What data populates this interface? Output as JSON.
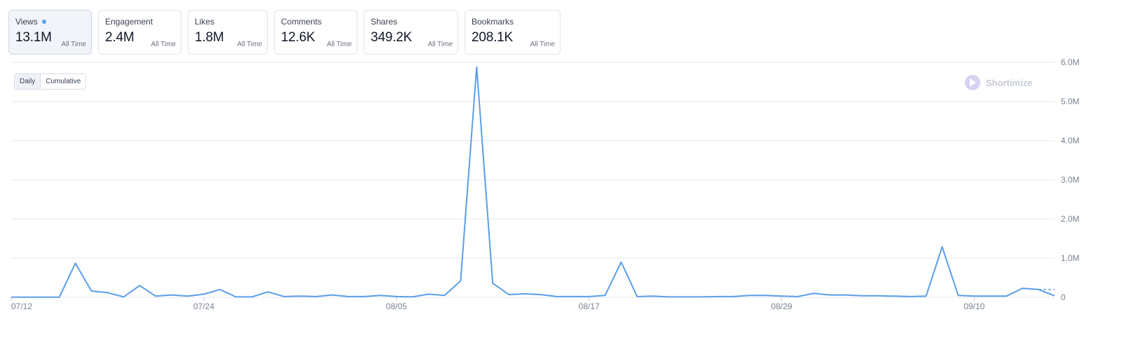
{
  "stats": [
    {
      "label": "Views",
      "value": "13.1M",
      "sub": "All Time",
      "active": true
    },
    {
      "label": "Engagement",
      "value": "2.4M",
      "sub": "All Time",
      "active": false
    },
    {
      "label": "Likes",
      "value": "1.8M",
      "sub": "All Time",
      "active": false
    },
    {
      "label": "Comments",
      "value": "12.6K",
      "sub": "All Time",
      "active": false
    },
    {
      "label": "Shares",
      "value": "349.2K",
      "sub": "All Time",
      "active": false
    },
    {
      "label": "Bookmarks",
      "value": "208.1K",
      "sub": "All Time",
      "active": false
    }
  ],
  "toggle": {
    "daily": "Daily",
    "cumulative": "Cumulative",
    "selected": "daily"
  },
  "watermark": {
    "text": "Shortimize"
  },
  "colors": {
    "line": "#5b9ee9",
    "grid": "#e3e7f0",
    "active_dot": "#5b9ee9"
  },
  "chart_data": {
    "type": "line",
    "y_ticks": [
      {
        "value": 0,
        "label": "0"
      },
      {
        "value": 1000000,
        "label": "1.0M"
      },
      {
        "value": 2000000,
        "label": "2.0M"
      },
      {
        "value": 3000000,
        "label": "3.0M"
      },
      {
        "value": 4000000,
        "label": "4.0M"
      },
      {
        "value": 5000000,
        "label": "5.0M"
      },
      {
        "value": 6000000,
        "label": "6.0M"
      }
    ],
    "ylim": [
      0,
      6000000
    ],
    "x_ticks": [
      "07/12",
      "07/24",
      "08/05",
      "08/17",
      "08/29",
      "09/10"
    ],
    "x": [
      "07/12",
      "07/13",
      "07/14",
      "07/15",
      "07/16",
      "07/17",
      "07/18",
      "07/19",
      "07/20",
      "07/21",
      "07/22",
      "07/23",
      "07/24",
      "07/25",
      "07/26",
      "07/27",
      "07/28",
      "07/29",
      "07/30",
      "07/31",
      "08/01",
      "08/02",
      "08/03",
      "08/04",
      "08/05",
      "08/06",
      "08/07",
      "08/08",
      "08/09",
      "08/10",
      "08/11",
      "08/12",
      "08/13",
      "08/14",
      "08/15",
      "08/16",
      "08/17",
      "08/18",
      "08/19",
      "08/20",
      "08/21",
      "08/22",
      "08/23",
      "08/24",
      "08/25",
      "08/26",
      "08/27",
      "08/28",
      "08/29",
      "08/30",
      "08/31",
      "09/01",
      "09/02",
      "09/03",
      "09/04",
      "09/05",
      "09/06",
      "09/07",
      "09/08",
      "09/09",
      "09/10",
      "09/11",
      "09/12",
      "09/13",
      "09/14",
      "09/15"
    ],
    "series": [
      {
        "values": [
          5000,
          5000,
          5000,
          5000,
          870000,
          160000,
          120000,
          10000,
          300000,
          30000,
          60000,
          30000,
          80000,
          200000,
          10000,
          10000,
          140000,
          20000,
          30000,
          20000,
          60000,
          20000,
          20000,
          50000,
          20000,
          10000,
          80000,
          50000,
          420000,
          5880000,
          360000,
          70000,
          90000,
          70000,
          20000,
          20000,
          20000,
          50000,
          900000,
          20000,
          30000,
          10000,
          10000,
          10000,
          20000,
          20000,
          50000,
          50000,
          30000,
          20000,
          100000,
          60000,
          60000,
          40000,
          40000,
          30000,
          20000,
          30000,
          1290000,
          50000,
          30000,
          30000,
          30000,
          230000,
          200000,
          40000
        ]
      }
    ],
    "grid": true,
    "legend": "none"
  }
}
